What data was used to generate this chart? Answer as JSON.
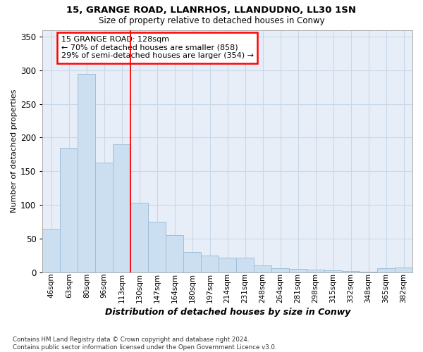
{
  "title1": "15, GRANGE ROAD, LLANRHOS, LLANDUDNO, LL30 1SN",
  "title2": "Size of property relative to detached houses in Conwy",
  "xlabel": "Distribution of detached houses by size in Conwy",
  "ylabel": "Number of detached properties",
  "categories": [
    "46sqm",
    "63sqm",
    "80sqm",
    "96sqm",
    "113sqm",
    "130sqm",
    "147sqm",
    "164sqm",
    "180sqm",
    "197sqm",
    "214sqm",
    "231sqm",
    "248sqm",
    "264sqm",
    "281sqm",
    "298sqm",
    "315sqm",
    "332sqm",
    "348sqm",
    "365sqm",
    "382sqm"
  ],
  "values": [
    64,
    185,
    295,
    163,
    190,
    103,
    75,
    55,
    30,
    25,
    22,
    22,
    10,
    6,
    5,
    4,
    3,
    2,
    1,
    6,
    7
  ],
  "bar_color": "#ccdff0",
  "bar_edge_color": "#a0bfd8",
  "grid_color": "#c8d8e8",
  "bg_color": "#e8eef8",
  "annotation_line1": "15 GRANGE ROAD: 128sqm",
  "annotation_line2": "← 70% of detached houses are smaller (858)",
  "annotation_line3": "29% of semi-detached houses are larger (354) →",
  "red_line_x": 5.0,
  "footer_line1": "Contains HM Land Registry data © Crown copyright and database right 2024.",
  "footer_line2": "Contains public sector information licensed under the Open Government Licence v3.0.",
  "ylim_max": 360,
  "yticks": [
    0,
    50,
    100,
    150,
    200,
    250,
    300,
    350
  ]
}
